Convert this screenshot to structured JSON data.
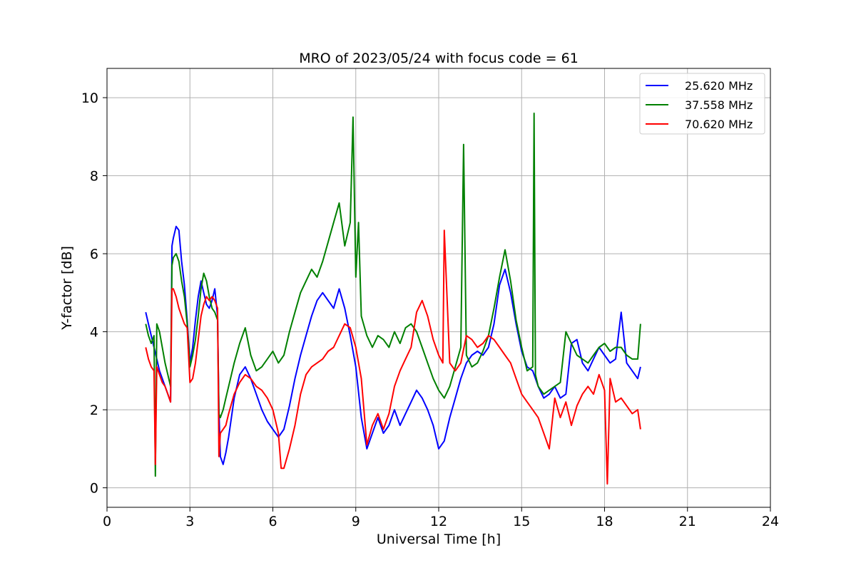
{
  "chart_data": {
    "type": "line",
    "title": "MRO of 2023/05/24 with focus code = 61",
    "xlabel": "Universal Time [h]",
    "ylabel": "Y-factor [dB]",
    "xlim": [
      0,
      24
    ],
    "ylim": [
      -0.5,
      10.75
    ],
    "xticks": [
      0,
      3,
      6,
      9,
      12,
      15,
      18,
      21,
      24
    ],
    "yticks": [
      0,
      2,
      4,
      6,
      8,
      10
    ],
    "grid": true,
    "legend_position": "top-right",
    "series": [
      {
        "name": "25.620 MHz",
        "color": "#0000ff",
        "x": [
          1.4,
          1.5,
          1.6,
          1.7,
          1.8,
          1.9,
          2.0,
          2.1,
          2.2,
          2.3,
          2.35,
          2.4,
          2.5,
          2.6,
          2.7,
          2.8,
          2.9,
          3.0,
          3.1,
          3.2,
          3.3,
          3.4,
          3.5,
          3.6,
          3.7,
          3.8,
          3.9,
          4.0,
          4.05,
          4.1,
          4.2,
          4.3,
          4.4,
          4.5,
          4.6,
          4.8,
          5.0,
          5.2,
          5.4,
          5.6,
          5.8,
          6.0,
          6.2,
          6.4,
          6.6,
          6.8,
          7.0,
          7.2,
          7.4,
          7.6,
          7.8,
          8.0,
          8.2,
          8.4,
          8.6,
          8.8,
          9.0,
          9.2,
          9.4,
          9.6,
          9.8,
          10.0,
          10.2,
          10.4,
          10.6,
          10.8,
          11.0,
          11.2,
          11.4,
          11.6,
          11.8,
          12.0,
          12.2,
          12.4,
          12.6,
          12.8,
          13.0,
          13.2,
          13.4,
          13.6,
          13.8,
          14.0,
          14.2,
          14.4,
          14.6,
          14.8,
          15.0,
          15.2,
          15.4,
          15.6,
          15.8,
          16.0,
          16.2,
          16.4,
          16.6,
          16.8,
          17.0,
          17.2,
          17.4,
          17.6,
          17.8,
          18.0,
          18.2,
          18.4,
          18.6,
          18.8,
          19.0,
          19.2,
          19.3
        ],
        "y": [
          4.5,
          4.2,
          3.9,
          3.6,
          3.3,
          3.0,
          2.8,
          2.6,
          2.4,
          2.2,
          6.2,
          6.4,
          6.7,
          6.6,
          5.8,
          5.2,
          4.3,
          3.2,
          3.6,
          4.3,
          4.9,
          5.3,
          5.0,
          4.7,
          4.6,
          4.8,
          5.1,
          4.4,
          2.0,
          0.8,
          0.6,
          0.9,
          1.3,
          1.8,
          2.3,
          2.9,
          3.1,
          2.8,
          2.4,
          2.0,
          1.7,
          1.5,
          1.3,
          1.5,
          2.1,
          2.8,
          3.4,
          3.9,
          4.4,
          4.8,
          5.0,
          4.8,
          4.6,
          5.1,
          4.6,
          3.9,
          3.1,
          1.8,
          1.0,
          1.4,
          1.8,
          1.4,
          1.6,
          2.0,
          1.6,
          1.9,
          2.2,
          2.5,
          2.3,
          2.0,
          1.6,
          1.0,
          1.2,
          1.8,
          2.3,
          2.8,
          3.2,
          3.4,
          3.5,
          3.4,
          3.6,
          4.2,
          5.2,
          5.6,
          5.0,
          4.2,
          3.5,
          3.1,
          3.0,
          2.6,
          2.3,
          2.4,
          2.6,
          2.3,
          2.4,
          3.7,
          3.8,
          3.2,
          3.0,
          3.3,
          3.6,
          3.4,
          3.2,
          3.3,
          4.5,
          3.2,
          3.0,
          2.8,
          3.1
        ]
      },
      {
        "name": "37.558 MHz",
        "color": "#008000",
        "x": [
          1.4,
          1.5,
          1.6,
          1.7,
          1.75,
          1.8,
          1.9,
          2.0,
          2.1,
          2.2,
          2.3,
          2.35,
          2.4,
          2.5,
          2.6,
          2.7,
          2.8,
          2.9,
          3.0,
          3.1,
          3.2,
          3.3,
          3.4,
          3.5,
          3.6,
          3.7,
          3.8,
          3.9,
          4.0,
          4.05,
          4.1,
          4.2,
          4.3,
          4.4,
          4.6,
          4.8,
          5.0,
          5.2,
          5.4,
          5.6,
          5.8,
          6.0,
          6.2,
          6.4,
          6.6,
          6.8,
          7.0,
          7.2,
          7.4,
          7.6,
          7.8,
          8.0,
          8.2,
          8.4,
          8.6,
          8.8,
          8.9,
          9.0,
          9.1,
          9.2,
          9.4,
          9.6,
          9.8,
          10.0,
          10.2,
          10.4,
          10.6,
          10.8,
          11.0,
          11.2,
          11.4,
          11.6,
          11.8,
          12.0,
          12.2,
          12.4,
          12.6,
          12.8,
          12.9,
          13.0,
          13.2,
          13.4,
          13.6,
          13.8,
          14.0,
          14.2,
          14.4,
          14.6,
          14.8,
          15.0,
          15.2,
          15.4,
          15.45,
          15.5,
          15.6,
          15.8,
          16.0,
          16.2,
          16.4,
          16.6,
          16.8,
          17.0,
          17.2,
          17.4,
          17.6,
          17.8,
          18.0,
          18.2,
          18.4,
          18.6,
          18.8,
          19.0,
          19.2,
          19.3
        ],
        "y": [
          4.2,
          3.9,
          3.7,
          3.9,
          0.3,
          4.2,
          4.0,
          3.6,
          3.2,
          2.9,
          2.6,
          5.7,
          5.9,
          6.0,
          5.8,
          5.3,
          4.9,
          4.2,
          3.1,
          3.4,
          3.8,
          4.4,
          5.1,
          5.5,
          5.3,
          4.9,
          4.6,
          4.5,
          4.3,
          1.9,
          1.8,
          2.0,
          2.3,
          2.6,
          3.2,
          3.7,
          4.1,
          3.4,
          3.0,
          3.1,
          3.3,
          3.5,
          3.2,
          3.4,
          4.0,
          4.5,
          5.0,
          5.3,
          5.6,
          5.4,
          5.8,
          6.3,
          6.8,
          7.3,
          6.2,
          6.8,
          9.5,
          5.4,
          6.8,
          4.4,
          3.9,
          3.6,
          3.9,
          3.8,
          3.6,
          4.0,
          3.7,
          4.1,
          4.2,
          4.0,
          3.6,
          3.2,
          2.8,
          2.5,
          2.3,
          2.6,
          3.1,
          3.6,
          8.8,
          3.4,
          3.1,
          3.2,
          3.5,
          3.9,
          4.6,
          5.4,
          6.1,
          5.3,
          4.3,
          3.6,
          3.0,
          3.1,
          9.6,
          2.9,
          2.6,
          2.4,
          2.5,
          2.6,
          2.7,
          4.0,
          3.7,
          3.4,
          3.3,
          3.2,
          3.4,
          3.6,
          3.7,
          3.5,
          3.6,
          3.6,
          3.4,
          3.3,
          3.3,
          4.2
        ]
      },
      {
        "name": "70.620 MHz",
        "color": "#ff0000",
        "x": [
          1.4,
          1.5,
          1.6,
          1.7,
          1.75,
          1.8,
          1.9,
          2.0,
          2.1,
          2.2,
          2.3,
          2.35,
          2.4,
          2.5,
          2.6,
          2.7,
          2.8,
          2.9,
          3.0,
          3.1,
          3.2,
          3.3,
          3.4,
          3.5,
          3.6,
          3.7,
          3.8,
          3.9,
          4.0,
          4.05,
          4.1,
          4.2,
          4.3,
          4.4,
          4.6,
          4.8,
          5.0,
          5.2,
          5.4,
          5.6,
          5.8,
          6.0,
          6.2,
          6.3,
          6.4,
          6.6,
          6.8,
          7.0,
          7.2,
          7.4,
          7.6,
          7.8,
          8.0,
          8.2,
          8.4,
          8.6,
          8.8,
          9.0,
          9.2,
          9.4,
          9.6,
          9.8,
          10.0,
          10.2,
          10.4,
          10.6,
          10.8,
          11.0,
          11.2,
          11.4,
          11.6,
          11.8,
          12.0,
          12.15,
          12.2,
          12.4,
          12.6,
          12.8,
          13.0,
          13.2,
          13.4,
          13.6,
          13.8,
          14.0,
          14.2,
          14.4,
          14.6,
          14.8,
          15.0,
          15.2,
          15.4,
          15.6,
          15.8,
          16.0,
          16.2,
          16.4,
          16.6,
          16.8,
          17.0,
          17.2,
          17.4,
          17.6,
          17.8,
          18.0,
          18.1,
          18.2,
          18.4,
          18.6,
          18.8,
          19.0,
          19.2,
          19.3
        ],
        "y": [
          3.6,
          3.3,
          3.1,
          3.0,
          0.6,
          3.1,
          2.9,
          2.7,
          2.6,
          2.4,
          2.2,
          5.1,
          5.1,
          4.9,
          4.6,
          4.4,
          4.2,
          4.1,
          2.7,
          2.8,
          3.2,
          3.8,
          4.4,
          4.7,
          4.9,
          4.8,
          4.9,
          4.8,
          4.6,
          0.8,
          1.4,
          1.5,
          1.6,
          1.9,
          2.4,
          2.7,
          2.9,
          2.8,
          2.6,
          2.5,
          2.3,
          2.0,
          1.4,
          0.5,
          0.5,
          1.0,
          1.6,
          2.4,
          2.9,
          3.1,
          3.2,
          3.3,
          3.5,
          3.6,
          3.9,
          4.2,
          4.1,
          3.6,
          2.8,
          1.1,
          1.6,
          1.9,
          1.5,
          1.9,
          2.6,
          3.0,
          3.3,
          3.6,
          4.5,
          4.8,
          4.4,
          3.8,
          3.4,
          3.2,
          6.6,
          3.2,
          3.0,
          3.2,
          3.9,
          3.8,
          3.6,
          3.7,
          3.9,
          3.8,
          3.6,
          3.4,
          3.2,
          2.8,
          2.4,
          2.2,
          2.0,
          1.8,
          1.4,
          1.0,
          2.3,
          1.8,
          2.2,
          1.6,
          2.1,
          2.4,
          2.6,
          2.4,
          2.9,
          2.5,
          0.1,
          2.8,
          2.2,
          2.3,
          2.1,
          1.9,
          2.0,
          1.5
        ]
      }
    ]
  }
}
